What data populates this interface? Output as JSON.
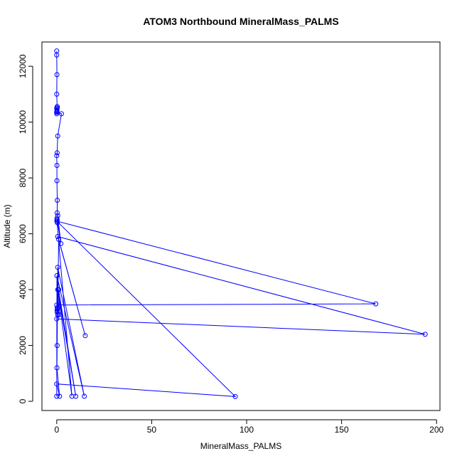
{
  "chart_data": {
    "type": "line",
    "title": "ATOM3 Northbound MineralMass_PALMS",
    "xlabel": "MineralMass_PALMS",
    "ylabel": "Altitude (m)",
    "xlim": [
      -7.8,
      201.8
    ],
    "ylim": [
      -330,
      12870
    ],
    "x_ticks": [
      0,
      50,
      100,
      150,
      200
    ],
    "y_ticks": [
      0,
      2000,
      4000,
      6000,
      8000,
      10000,
      12000
    ],
    "grid": false,
    "legend": "none",
    "marker": "open-circle",
    "series": [
      {
        "color": "#0000ff",
        "x": [
          0,
          0,
          0.1,
          0,
          0.2,
          0,
          0.1,
          0,
          0,
          0.1,
          0.2,
          0.3,
          0.1,
          0,
          2.5,
          0.5,
          0.2,
          0,
          0.1,
          0.1,
          0.3,
          0.2,
          0.5,
          2.2,
          0.1,
          0.2,
          0.3,
          0.1,
          168,
          0,
          0.3,
          0.3,
          0.2,
          0.2,
          0.5,
          1,
          15,
          0.5,
          194,
          0,
          1.2,
          1,
          10,
          0.5,
          8,
          0.1,
          94,
          0,
          1.5,
          0.1,
          0.2,
          0.5,
          14.5,
          0.1,
          0
        ],
        "y": [
          12550,
          12400,
          11700,
          11000,
          10550,
          10500,
          10380,
          10300,
          10350,
          10450,
          10500,
          10550,
          10400,
          10350,
          10300,
          9500,
          8900,
          8800,
          8450,
          7900,
          7200,
          6750,
          6650,
          5650,
          6550,
          6500,
          6400,
          6450,
          3490,
          3450,
          3350,
          3300,
          3250,
          3200,
          3100,
          5800,
          2350,
          5900,
          2400,
          2950,
          3100,
          4000,
          180,
          4000,
          180,
          6450,
          170,
          620,
          180,
          1200,
          2000,
          4800,
          180,
          4500,
          180
        ]
      }
    ]
  }
}
